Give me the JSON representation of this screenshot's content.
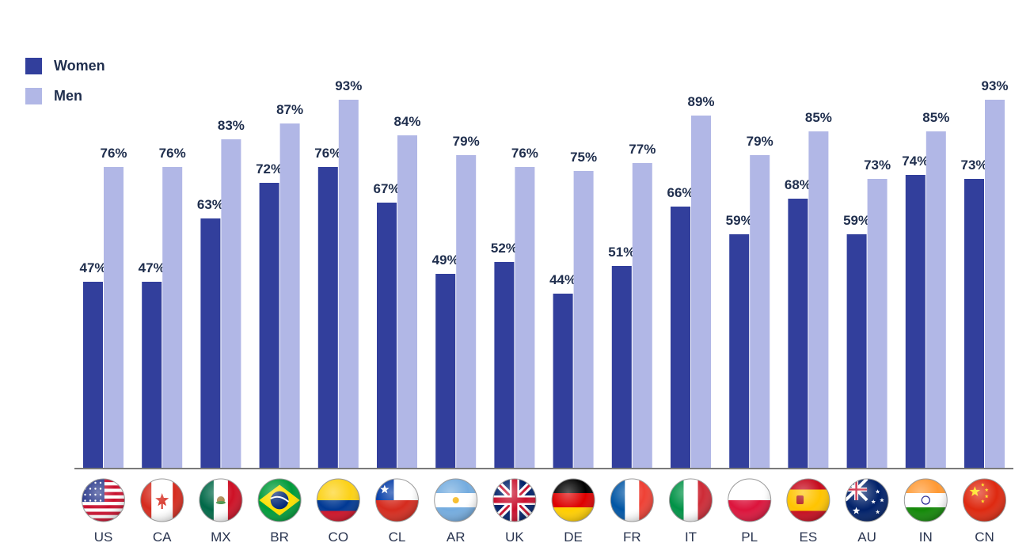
{
  "chart_data": {
    "type": "bar",
    "categories": [
      "US",
      "CA",
      "MX",
      "BR",
      "CO",
      "CL",
      "AR",
      "UK",
      "DE",
      "FR",
      "IT",
      "PL",
      "ES",
      "AU",
      "IN",
      "CN"
    ],
    "series": [
      {
        "name": "Women",
        "color": "#323f9c",
        "values": [
          47,
          47,
          63,
          72,
          76,
          67,
          49,
          52,
          44,
          51,
          66,
          59,
          68,
          59,
          74,
          73
        ]
      },
      {
        "name": "Men",
        "color": "#b1b7e6",
        "values": [
          76,
          76,
          83,
          87,
          93,
          84,
          79,
          76,
          75,
          77,
          89,
          79,
          85,
          73,
          85,
          93
        ]
      }
    ],
    "value_suffix": "%",
    "ylim": [
      0,
      100
    ],
    "grid": false,
    "legend_position": "top-left",
    "flag_icons": [
      "us-flag-icon",
      "ca-flag-icon",
      "mx-flag-icon",
      "br-flag-icon",
      "co-flag-icon",
      "cl-flag-icon",
      "ar-flag-icon",
      "uk-flag-icon",
      "de-flag-icon",
      "fr-flag-icon",
      "it-flag-icon",
      "pl-flag-icon",
      "es-flag-icon",
      "au-flag-icon",
      "in-flag-icon",
      "cn-flag-icon"
    ]
  }
}
